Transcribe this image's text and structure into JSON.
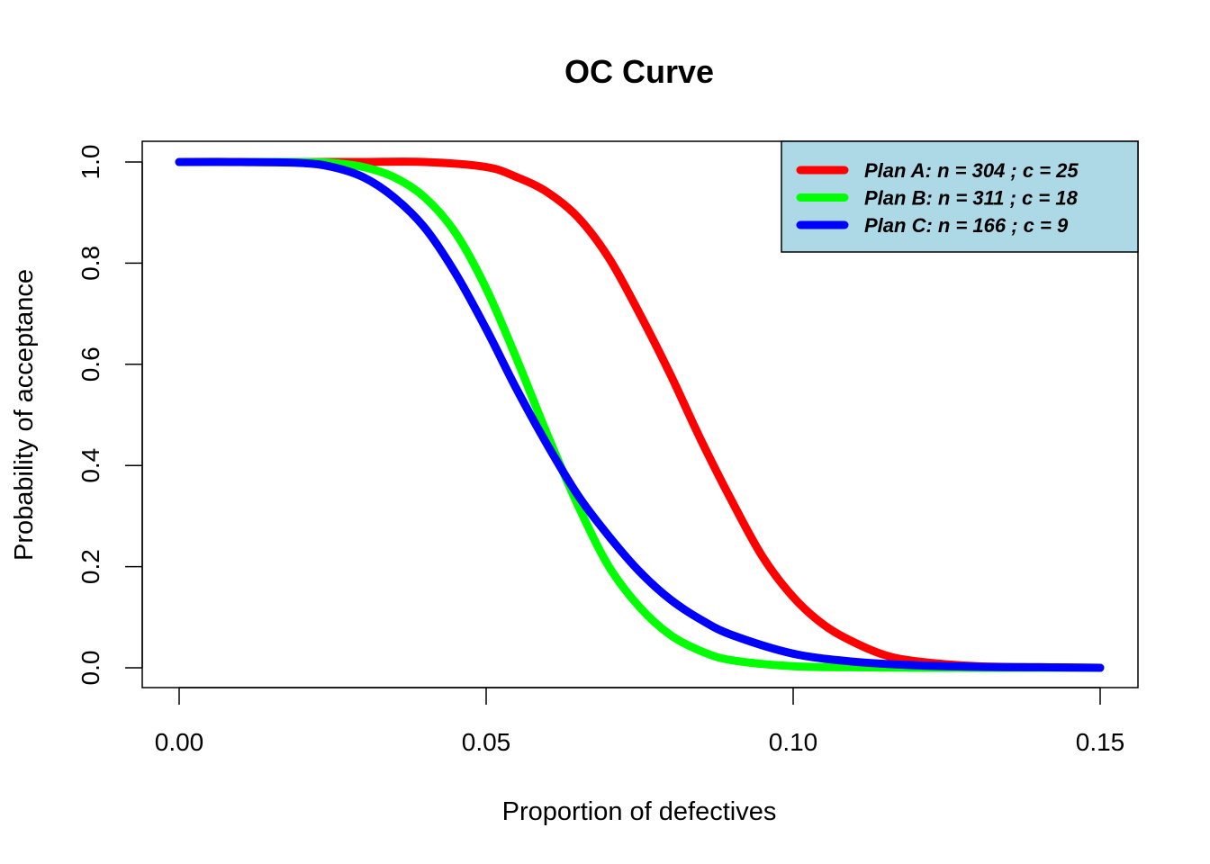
{
  "chart_data": {
    "type": "line",
    "title": "OC Curve",
    "xlabel": "Proportion of defectives",
    "ylabel": "Probability of acceptance",
    "xlim": [
      0,
      0.15
    ],
    "ylim": [
      0,
      1
    ],
    "x_ticks": [
      "0.00",
      "0.05",
      "0.10",
      "0.15"
    ],
    "y_ticks": [
      "0.0",
      "0.2",
      "0.4",
      "0.6",
      "0.8",
      "1.0"
    ],
    "grid": false,
    "legend_position": "top-right",
    "legend_background": "#add8e6",
    "series": [
      {
        "name": "Plan A: n =  304 ; c =  25",
        "color": "#ff0000",
        "n": 304,
        "c": 25,
        "x": [
          0,
          0.01,
          0.02,
          0.03,
          0.04,
          0.05,
          0.055,
          0.06,
          0.065,
          0.07,
          0.075,
          0.08,
          0.085,
          0.09,
          0.095,
          0.1,
          0.105,
          0.11,
          0.115,
          0.12,
          0.13,
          0.14,
          0.15
        ],
        "y": [
          1,
          1,
          1,
          1,
          1,
          0.99,
          0.97,
          0.94,
          0.89,
          0.81,
          0.7,
          0.58,
          0.45,
          0.33,
          0.22,
          0.14,
          0.085,
          0.05,
          0.025,
          0.013,
          0.003,
          0.001,
          0
        ]
      },
      {
        "name": "Plan B: n =  311 ; c =  18",
        "color": "#00ff00",
        "n": 311,
        "c": 18,
        "x": [
          0,
          0.01,
          0.02,
          0.025,
          0.03,
          0.035,
          0.04,
          0.045,
          0.05,
          0.055,
          0.06,
          0.065,
          0.07,
          0.075,
          0.08,
          0.085,
          0.09,
          0.1,
          0.11,
          0.12,
          0.13,
          0.14,
          0.15
        ],
        "y": [
          1,
          1,
          1,
          0.998,
          0.99,
          0.97,
          0.93,
          0.86,
          0.75,
          0.61,
          0.46,
          0.32,
          0.2,
          0.12,
          0.065,
          0.033,
          0.015,
          0.003,
          0.001,
          0,
          0,
          0,
          0
        ]
      },
      {
        "name": "Plan C: n =  166 ; c =  9",
        "color": "#0000ff",
        "n": 166,
        "c": 9,
        "x": [
          0,
          0.01,
          0.02,
          0.025,
          0.03,
          0.035,
          0.04,
          0.045,
          0.05,
          0.055,
          0.06,
          0.065,
          0.07,
          0.075,
          0.08,
          0.085,
          0.09,
          0.1,
          0.11,
          0.12,
          0.13,
          0.14,
          0.15
        ],
        "y": [
          1,
          1,
          0.998,
          0.99,
          0.97,
          0.93,
          0.87,
          0.78,
          0.67,
          0.55,
          0.44,
          0.34,
          0.26,
          0.19,
          0.135,
          0.095,
          0.065,
          0.028,
          0.012,
          0.005,
          0.002,
          0.001,
          0
        ]
      }
    ]
  }
}
